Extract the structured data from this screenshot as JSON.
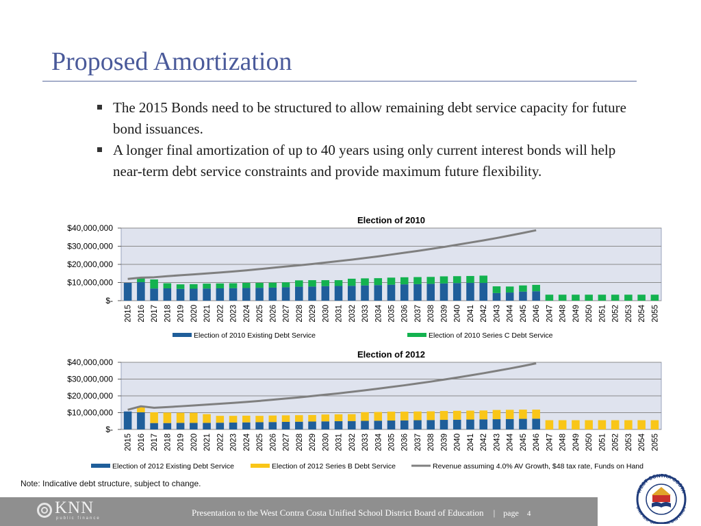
{
  "title": "Proposed Amortization",
  "bullets": [
    "The 2015 Bonds need to be structured to allow remaining debt service capacity for future bond issuances.",
    "A longer final amortization of up to 40 years using only current interest bonds will help near-term debt service constraints and provide maximum future flexibility."
  ],
  "note": "Note: Indicative debt structure, subject to change.",
  "footer": {
    "logo_name": "KNN",
    "logo_sub": "public finance",
    "text": "Presentation to the West Contra Costa Unified School District Board of Education",
    "separator": "|",
    "page_label": "page",
    "page_number": "4"
  },
  "seal": {
    "text_top": "WEST CONTRA COSTA",
    "text_bottom": "UNIFIED SCHOOL DISTRICT"
  },
  "colors": {
    "title": "#4a5a9a",
    "existing": "#1f5e9a",
    "series_c": "#13b24f",
    "series_b": "#f9c618",
    "revenue": "#7f7f7f",
    "plot_bg": "#dfe3ee"
  },
  "chart_data": [
    {
      "type": "bar",
      "stacked": true,
      "title": "Election of 2010",
      "ylim": [
        0,
        40000000
      ],
      "yticks": [
        0,
        10000000,
        20000000,
        30000000,
        40000000
      ],
      "ytick_labels": [
        "$-",
        "$10,000,000",
        "$20,000,000",
        "$30,000,000",
        "$40,000,000"
      ],
      "categories": [
        "2015",
        "2016",
        "2017",
        "2018",
        "2019",
        "2020",
        "2021",
        "2022",
        "2023",
        "2024",
        "2025",
        "2026",
        "2027",
        "2028",
        "2029",
        "2030",
        "2031",
        "2032",
        "2033",
        "2034",
        "2035",
        "2036",
        "2037",
        "2038",
        "2039",
        "2040",
        "2041",
        "2042",
        "2043",
        "2044",
        "2045",
        "2046",
        "2047",
        "2048",
        "2049",
        "2050",
        "2051",
        "2052",
        "2053",
        "2054",
        "2055"
      ],
      "series": [
        {
          "name": "Election of 2010 Existing Debt Service",
          "color": "#1f5e9a",
          "values": [
            9800000,
            10200000,
            6700000,
            6800000,
            6500000,
            6600000,
            6700000,
            6800000,
            6900000,
            7000000,
            7100000,
            7200000,
            7400000,
            7700000,
            7800000,
            8000000,
            8100000,
            8200000,
            8400000,
            8600000,
            8800000,
            9000000,
            9100000,
            9300000,
            9500000,
            9700000,
            9800000,
            9800000,
            4200000,
            4500000,
            5000000,
            5200000,
            0,
            0,
            0,
            0,
            0,
            0,
            0,
            0,
            0
          ]
        },
        {
          "name": "Election of 2010 Series C Debt Service",
          "color": "#13b24f",
          "values": [
            0,
            2500000,
            5000000,
            2800000,
            2500000,
            2500000,
            2700000,
            2700000,
            2700000,
            2800000,
            2700000,
            2700000,
            2700000,
            3500000,
            3500000,
            3300000,
            3200000,
            3900000,
            3900000,
            3800000,
            3900000,
            3900000,
            3900000,
            3800000,
            3900000,
            3800000,
            3800000,
            4000000,
            3700000,
            3300000,
            3400000,
            3500000,
            3300000,
            3300000,
            3300000,
            3300000,
            3300000,
            3300000,
            3300000,
            3300000,
            3300000
          ]
        }
      ],
      "revenue": {
        "name": "Revenue assuming 4.0% AV Growth, $48 tax rate, Funds on Hand",
        "color": "#7f7f7f",
        "values": [
          12000000,
          12700000,
          12900000,
          13500000,
          14000000,
          14500000,
          15000000,
          15500000,
          16100000,
          16700000,
          17400000,
          18100000,
          18800000,
          19500000,
          20200000,
          21000000,
          21800000,
          22600000,
          23500000,
          24400000,
          25400000,
          26400000,
          27400000,
          28500000,
          29600000,
          30800000,
          32000000,
          33200000,
          34500000,
          35900000,
          37300000,
          38800000
        ]
      }
    },
    {
      "type": "bar",
      "stacked": true,
      "title": "Election of 2012",
      "ylim": [
        0,
        40000000
      ],
      "yticks": [
        0,
        10000000,
        20000000,
        30000000,
        40000000
      ],
      "ytick_labels": [
        "$-",
        "$10,000,000",
        "$20,000,000",
        "$30,000,000",
        "$40,000,000"
      ],
      "categories": [
        "2015",
        "2016",
        "2017",
        "2018",
        "2019",
        "2020",
        "2021",
        "2022",
        "2023",
        "2024",
        "2025",
        "2026",
        "2027",
        "2028",
        "2029",
        "2030",
        "2031",
        "2032",
        "2033",
        "2034",
        "2035",
        "2036",
        "2037",
        "2038",
        "2039",
        "2040",
        "2041",
        "2042",
        "2043",
        "2044",
        "2045",
        "2046",
        "2047",
        "2048",
        "2049",
        "2050",
        "2051",
        "2052",
        "2053",
        "2054",
        "2055"
      ],
      "series": [
        {
          "name": "Election of 2012 Existing Debt Service",
          "color": "#1f5e9a",
          "values": [
            10700000,
            10200000,
            3800000,
            3800000,
            3900000,
            3900000,
            3900000,
            4000000,
            4100000,
            4200000,
            4300000,
            4400000,
            4500000,
            4600000,
            4700000,
            4800000,
            4900000,
            5000000,
            5100000,
            5200000,
            5300000,
            5400000,
            5500000,
            5600000,
            5700000,
            5800000,
            5900000,
            6000000,
            6100000,
            6200000,
            6300000,
            6400000,
            0,
            0,
            0,
            0,
            0,
            0,
            0,
            0,
            0
          ]
        },
        {
          "name": "Election of 2012 Series B Debt Service",
          "color": "#f9c618",
          "values": [
            0,
            3200000,
            6400000,
            6200000,
            6000000,
            6000000,
            5200000,
            4100000,
            4000000,
            4000000,
            3800000,
            3900000,
            3900000,
            3900000,
            3900000,
            4100000,
            4100000,
            4100000,
            5200000,
            5200000,
            5300000,
            5200000,
            5200000,
            5200000,
            5300000,
            5300000,
            5300000,
            5300000,
            5500000,
            5500000,
            5500000,
            5400000,
            5500000,
            5500000,
            5500000,
            5500000,
            5500000,
            5500000,
            5500000,
            5500000,
            5500000
          ]
        }
      ],
      "revenue": {
        "name": "Revenue assuming 4.0% AV Growth, $48 tax rate, Funds on Hand",
        "color": "#7f7f7f",
        "values": [
          11700000,
          13800000,
          12900000,
          13300000,
          13800000,
          14300000,
          14800000,
          15300000,
          15800000,
          16400000,
          17000000,
          17700000,
          18400000,
          19100000,
          19900000,
          20700000,
          21500000,
          22400000,
          23300000,
          24300000,
          25300000,
          26300000,
          27400000,
          28500000,
          29700000,
          30900000,
          32200000,
          33500000,
          34900000,
          36300000,
          37800000,
          39400000
        ]
      }
    }
  ]
}
